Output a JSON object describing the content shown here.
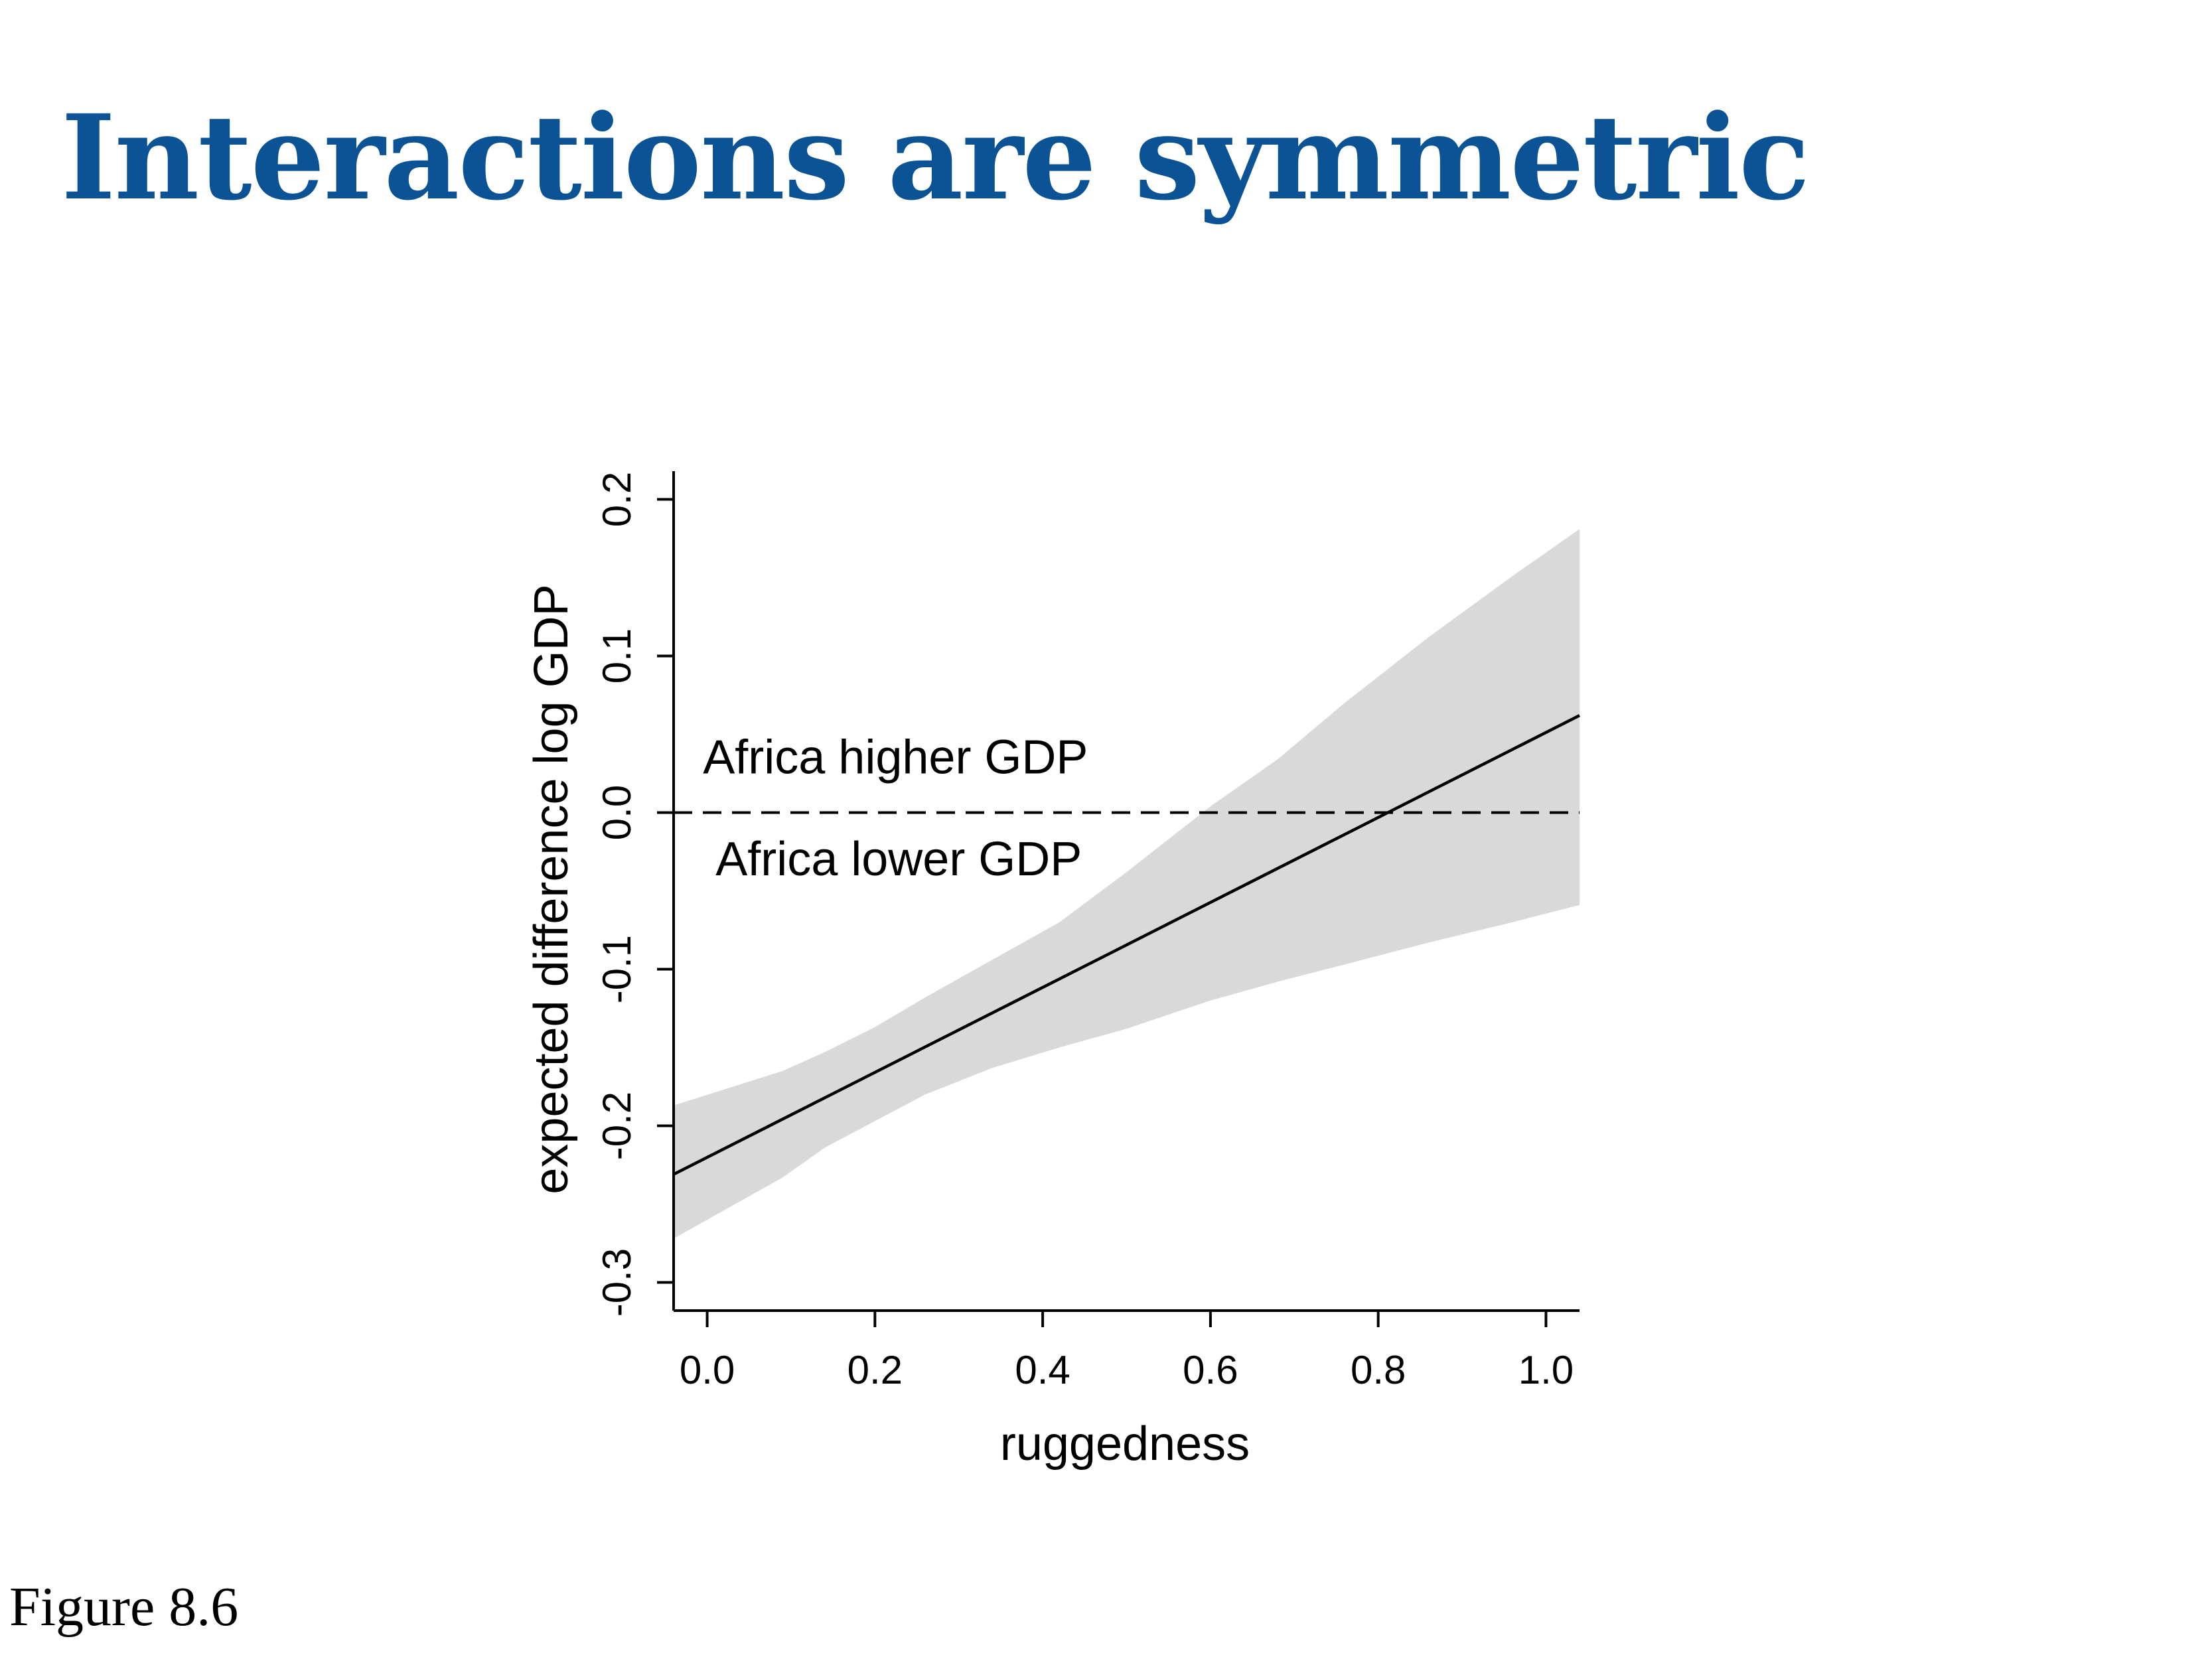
{
  "slide": {
    "title": "Interactions are symmetric",
    "title_color": "#0B5394",
    "caption": "Figure 8.6"
  },
  "chart_data": {
    "type": "line",
    "xlabel": "ruggedness",
    "ylabel": "expected difference log GDP",
    "xlim": [
      -0.04,
      1.04
    ],
    "ylim": [
      -0.318,
      0.218
    ],
    "x_ticks": [
      0.0,
      0.2,
      0.4,
      0.6,
      0.8,
      1.0
    ],
    "x_tick_labels": [
      "0.0",
      "0.2",
      "0.4",
      "0.6",
      "0.8",
      "1.0"
    ],
    "y_ticks": [
      -0.3,
      -0.2,
      -0.1,
      0.0,
      0.1,
      0.2
    ],
    "y_tick_labels": [
      "-0.3",
      "-0.2",
      "-0.1",
      "0.0",
      "0.1",
      "0.2"
    ],
    "grid": false,
    "series": [
      {
        "style": "solid",
        "color": "#000000",
        "x": [
          -0.04,
          1.04
        ],
        "y": [
          -0.231,
          0.062
        ]
      }
    ],
    "band": {
      "color": "#d9d9d9",
      "x": [
        -0.04,
        0.09,
        0.14,
        0.2,
        0.26,
        0.34,
        0.42,
        0.5,
        0.6,
        0.68,
        0.76,
        0.86,
        0.96,
        1.04
      ],
      "upper": [
        -0.187,
        -0.165,
        -0.153,
        -0.137,
        -0.118,
        -0.094,
        -0.07,
        -0.038,
        0.004,
        0.034,
        0.07,
        0.112,
        0.151,
        0.181
      ],
      "lower": [
        -0.272,
        -0.233,
        -0.214,
        -0.197,
        -0.18,
        -0.163,
        -0.15,
        -0.138,
        -0.12,
        -0.108,
        -0.097,
        -0.083,
        -0.07,
        -0.059
      ]
    },
    "reference_line": {
      "y": 0.0,
      "style": "dashed",
      "color": "#000000"
    },
    "annotations": [
      {
        "text": "Africa higher GDP",
        "x": -0.005,
        "y": 0.025
      },
      {
        "text": "Africa lower GDP",
        "x": 0.01,
        "y": -0.04
      }
    ]
  }
}
